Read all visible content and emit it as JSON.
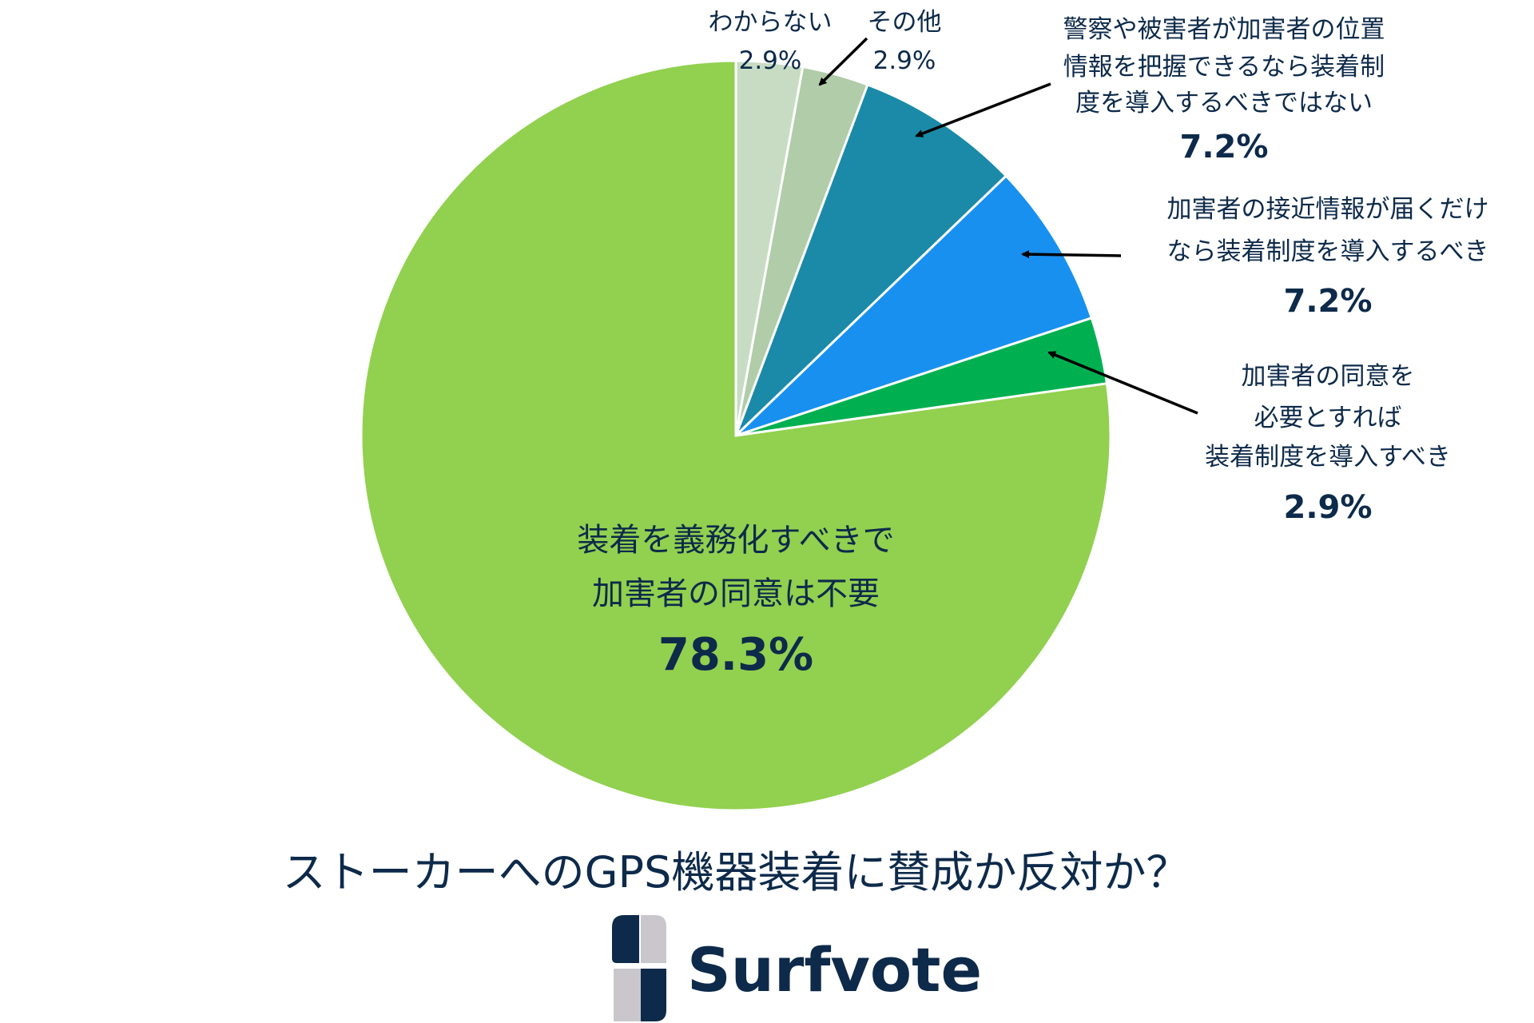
{
  "chart_data": {
    "type": "pie",
    "title": "ストーカーへのGPS機器装着に賛成か反対か？",
    "start": "top",
    "direction": "clockwise",
    "slices": [
      {
        "label": "わからない",
        "value": 2.9,
        "value_label": "2.9%",
        "color": "#c8dcc4"
      },
      {
        "label": "その他",
        "value": 2.9,
        "value_label": "2.9%",
        "color": "#b0cca8"
      },
      {
        "label": [
          "警察や被害者が加害者の位置",
          "情報を把握できるなら装着制",
          "度を導入するべきではない"
        ],
        "value": 7.2,
        "value_label": "7.2%",
        "color": "#1a8aa8"
      },
      {
        "label": [
          "加害者の接近情報が届くだけ",
          "なら装着制度を導入するべき"
        ],
        "value": 7.2,
        "value_label": "7.2%",
        "color": "#1890f0"
      },
      {
        "label": [
          "加害者の同意を",
          "必要とすれば",
          "装着制度を導入すべき"
        ],
        "value": 2.9,
        "value_label": "2.9%",
        "color": "#00b050"
      },
      {
        "label": [
          "装着を義務化すべきで",
          "加害者の同意は不要"
        ],
        "value": 78.3,
        "value_label": "78.3%",
        "color": "#92d050"
      }
    ]
  },
  "brand": {
    "name": "Surfvote"
  }
}
